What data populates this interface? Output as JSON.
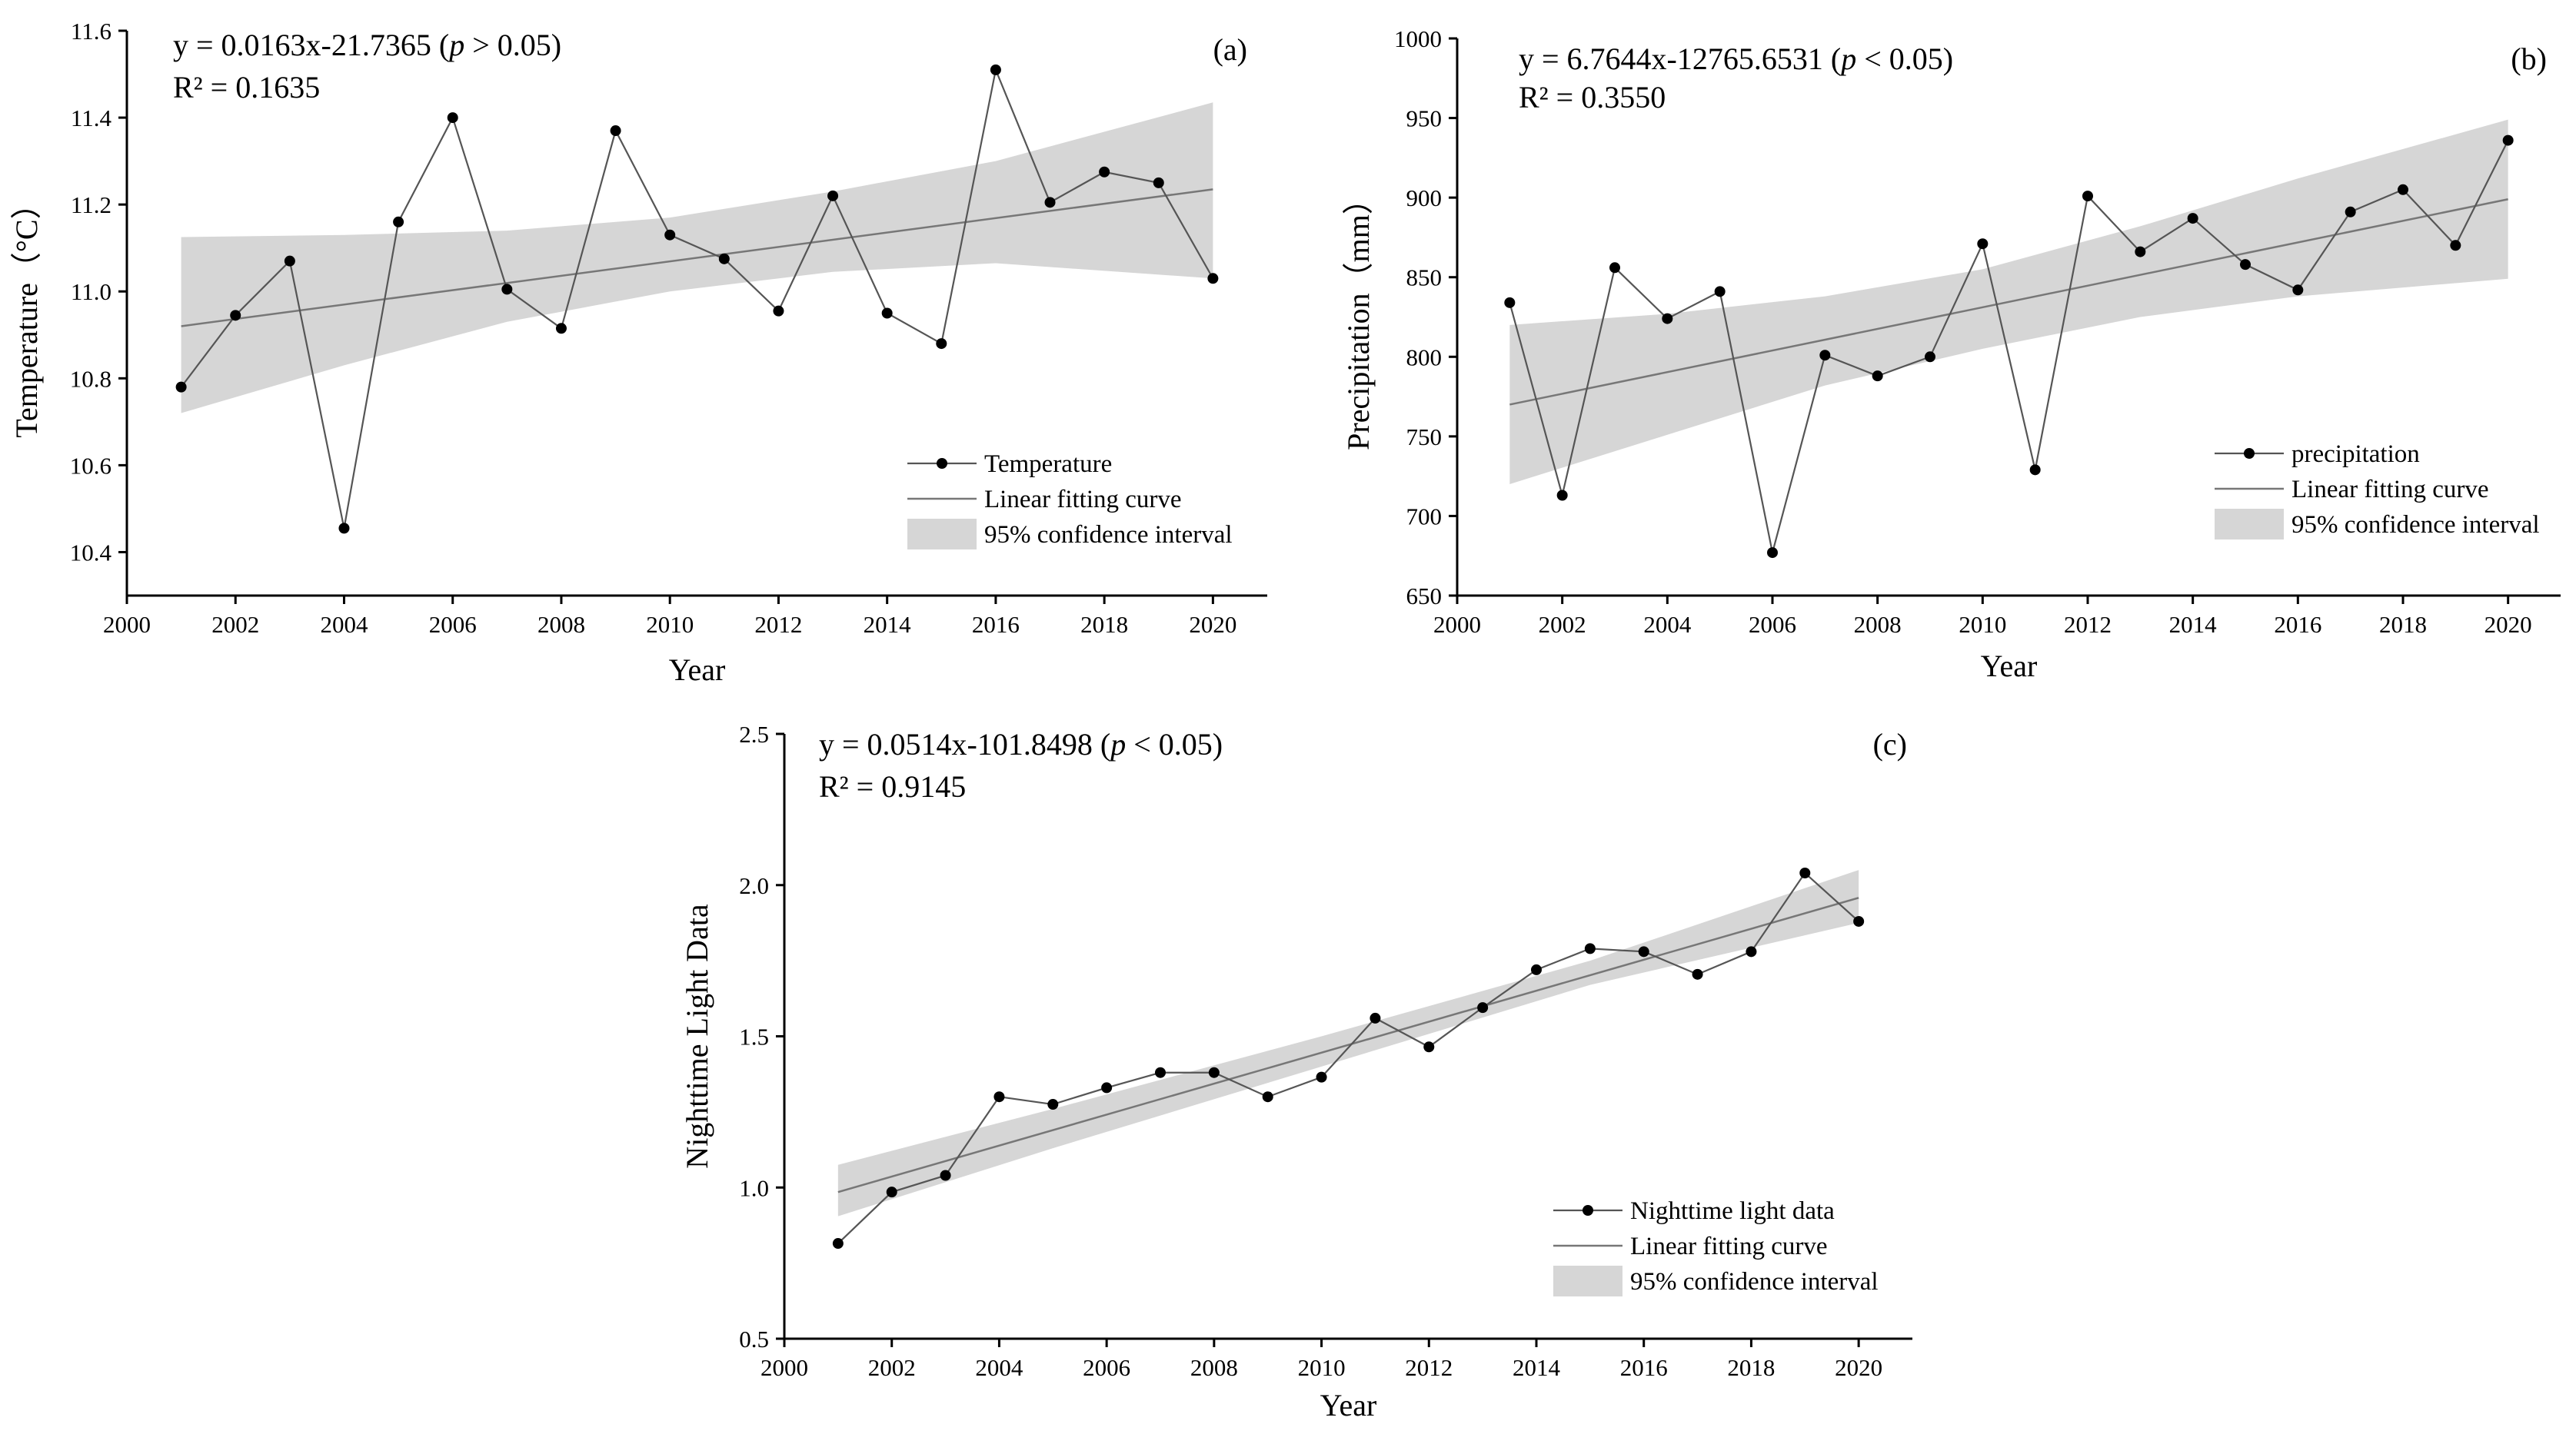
{
  "chart_data": [
    {
      "id": "a",
      "type": "line",
      "panel_label": "(a)",
      "equation": "y = 0.0163x-21.7365 (",
      "p_symbol": "p",
      "p_rest": " > 0.05)",
      "r2": "R² = 0.1635",
      "xlabel": "Year",
      "ylabel": "Temperature（°C）",
      "xlim": [
        2000,
        2021
      ],
      "ylim": [
        10.3,
        11.6
      ],
      "xticks": [
        2000,
        2002,
        2004,
        2006,
        2008,
        2010,
        2012,
        2014,
        2016,
        2018,
        2020
      ],
      "yticks": [
        10.4,
        10.6,
        10.8,
        11.0,
        11.2,
        11.4,
        11.6
      ],
      "ytick_decimals": 1,
      "x": [
        2001,
        2002,
        2003,
        2004,
        2005,
        2006,
        2007,
        2008,
        2009,
        2010,
        2011,
        2012,
        2013,
        2014,
        2015,
        2016,
        2017,
        2018,
        2019,
        2020
      ],
      "values": [
        10.78,
        10.945,
        11.07,
        10.455,
        11.16,
        11.4,
        11.005,
        10.915,
        11.37,
        11.13,
        11.075,
        10.955,
        11.22,
        10.95,
        10.88,
        11.51,
        11.205,
        11.275,
        11.25,
        11.03
      ],
      "fit": {
        "x": [
          2001,
          2020
        ],
        "y": [
          10.92,
          11.235
        ]
      },
      "ci": {
        "x": [
          2001,
          2004,
          2007,
          2010,
          2013,
          2016,
          2020
        ],
        "upper": [
          11.125,
          11.13,
          11.14,
          11.17,
          11.23,
          11.3,
          11.435
        ],
        "lower": [
          10.72,
          10.83,
          10.93,
          11.0,
          11.045,
          11.065,
          11.03
        ]
      },
      "legend": {
        "series": "Temperature",
        "fit": "Linear fitting curve",
        "ci": "95% confidence interval"
      },
      "legend_position": "bottom-right"
    },
    {
      "id": "b",
      "type": "line",
      "panel_label": "(b)",
      "equation": "y = 6.7644x-12765.6531 (",
      "p_symbol": "p",
      "p_rest": " < 0.05)",
      "r2": "R² = 0.3550",
      "xlabel": "Year",
      "ylabel": "Precipitation（mm）",
      "xlim": [
        2000,
        2021
      ],
      "ylim": [
        650,
        1000
      ],
      "xticks": [
        2000,
        2002,
        2004,
        2006,
        2008,
        2010,
        2012,
        2014,
        2016,
        2018,
        2020
      ],
      "yticks": [
        650,
        700,
        750,
        800,
        850,
        900,
        950,
        1000
      ],
      "ytick_decimals": 0,
      "x": [
        2001,
        2002,
        2003,
        2004,
        2005,
        2006,
        2007,
        2008,
        2009,
        2010,
        2011,
        2012,
        2013,
        2014,
        2015,
        2016,
        2017,
        2018,
        2019,
        2020
      ],
      "values": [
        834,
        713,
        856,
        824,
        841,
        677,
        801,
        788,
        800,
        871,
        729,
        901,
        866,
        887,
        858,
        842,
        891,
        905,
        870,
        936
      ],
      "fit": {
        "x": [
          2001,
          2020
        ],
        "y": [
          770,
          899
        ]
      },
      "ci": {
        "x": [
          2001,
          2004,
          2007,
          2010,
          2013,
          2016,
          2020
        ],
        "upper": [
          820,
          827,
          838,
          855,
          882,
          912,
          949
        ],
        "lower": [
          720,
          751,
          782,
          805,
          825,
          838,
          849
        ]
      },
      "legend": {
        "series": "precipitation",
        "fit": "Linear fitting curve",
        "ci": "95% confidence interval"
      },
      "legend_position": "right"
    },
    {
      "id": "c",
      "type": "line",
      "panel_label": "(c)",
      "equation": "y = 0.0514x-101.8498 (",
      "p_symbol": "p",
      "p_rest": " < 0.05)",
      "r2": "R² = 0.9145",
      "xlabel": "Year",
      "ylabel": "Nighttime  Light  Data",
      "xlim": [
        2000,
        2021
      ],
      "ylim": [
        0.5,
        2.5
      ],
      "xticks": [
        2000,
        2002,
        2004,
        2006,
        2008,
        2010,
        2012,
        2014,
        2016,
        2018,
        2020
      ],
      "yticks": [
        0.5,
        1.0,
        1.5,
        2.0,
        2.5
      ],
      "ytick_decimals": 1,
      "x": [
        2001,
        2002,
        2003,
        2004,
        2005,
        2006,
        2007,
        2008,
        2009,
        2010,
        2011,
        2012,
        2013,
        2014,
        2015,
        2016,
        2017,
        2018,
        2019,
        2020
      ],
      "values": [
        0.815,
        0.985,
        1.04,
        1.3,
        1.275,
        1.33,
        1.38,
        1.38,
        1.3,
        1.365,
        1.56,
        1.465,
        1.595,
        1.72,
        1.79,
        1.78,
        1.705,
        1.78,
        2.04,
        1.88
      ],
      "fit": {
        "x": [
          2001,
          2020
        ],
        "y": [
          0.985,
          1.958
        ]
      },
      "ci": {
        "x": [
          2001,
          2005,
          2010,
          2015,
          2020
        ],
        "upper": [
          1.075,
          1.26,
          1.5,
          1.75,
          2.05
        ],
        "lower": [
          0.905,
          1.13,
          1.4,
          1.67,
          1.875
        ]
      },
      "legend": {
        "series": "Nighttime light data",
        "fit": "Linear fitting curve",
        "ci": "95% confidence interval"
      },
      "legend_position": "bottom-right"
    }
  ]
}
